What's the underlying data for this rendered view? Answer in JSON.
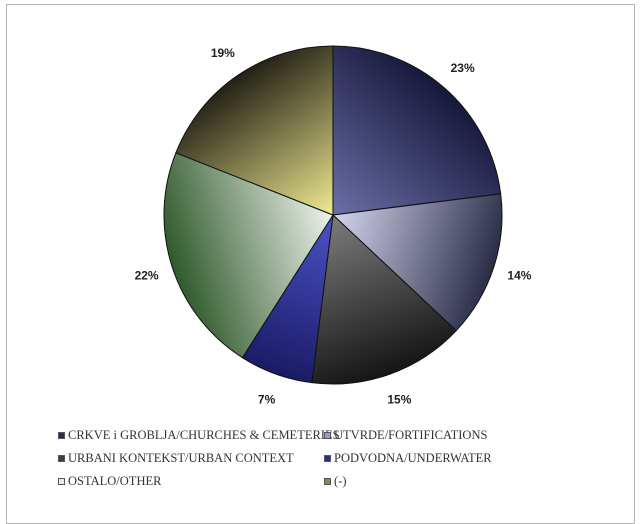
{
  "chart_data": {
    "type": "pie",
    "title": "",
    "slices": [
      {
        "label": "CRKVE i GROBLJA/CHURCHES & CEMETERIES",
        "value": 23,
        "label_text": "23%",
        "color_dark": "#16183a",
        "color_light": "#6c6fa8"
      },
      {
        "label": "UTVRDE/FORTIFICATIONS",
        "value": 14,
        "label_text": "14%",
        "color_dark": "#2b2c46",
        "color_light": "#d5d6ee"
      },
      {
        "label": "URBANI KONTEKST/URBAN CONTEXT",
        "value": 15,
        "label_text": "15%",
        "color_dark": "#151515",
        "color_light": "#7d7d7d"
      },
      {
        "label": "PODVODNA/UNDERWATER",
        "value": 7,
        "label_text": "7%",
        "color_dark": "#1a1b66",
        "color_light": "#4c53c8"
      },
      {
        "label": "OSTALO/OTHER",
        "value": 22,
        "label_text": "22%",
        "color_dark": "#2f5a2b",
        "color_light": "#eef2ec"
      },
      {
        "label": "(-)",
        "value": 19,
        "label_text": "19%",
        "color_dark": "#232115",
        "color_light": "#f0eb91"
      }
    ],
    "legend_position": "bottom"
  },
  "legend": {
    "items": [
      {
        "text": "CRKVE i GROBLJA/CHURCHES & CEMETERIES",
        "color": "#2c2e5a"
      },
      {
        "text": "UTVRDE/FORTIFICATIONS",
        "color": "#9a9cc7"
      },
      {
        "text": "URBANI KONTEKST/URBAN CONTEXT",
        "color": "#3d3d3d"
      },
      {
        "text": "PODVODNA/UNDERWATER",
        "color": "#2a2f96"
      },
      {
        "text": "OSTALO/OTHER",
        "color": "#e6ebe3"
      },
      {
        "text": "(-)",
        "color": "#8c8a4a"
      }
    ]
  }
}
